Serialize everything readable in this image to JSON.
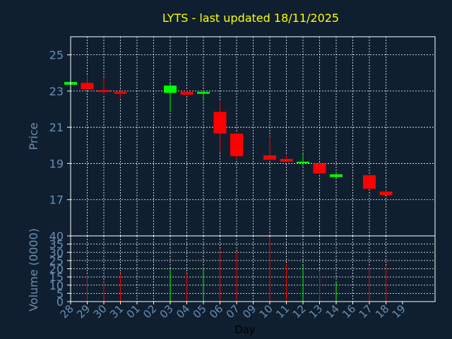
{
  "chart_data": [
    {
      "type": "candlestick",
      "title": "LYTS - last updated 18/11/2025",
      "xlabel": "",
      "ylabel": "Price",
      "ylim": [
        15,
        26
      ],
      "yticks": [
        "17",
        "19",
        "21",
        "23",
        "25"
      ],
      "grid": true,
      "candles": [
        {
          "date": "28",
          "open": 23.35,
          "high": 23.5,
          "low": 23.35,
          "close": 23.5,
          "color": "up"
        },
        {
          "date": "29",
          "open": 23.45,
          "high": 23.8,
          "low": 23.1,
          "close": 23.1,
          "color": "down"
        },
        {
          "date": "30",
          "open": 23.05,
          "high": 23.75,
          "low": 22.8,
          "close": 22.95,
          "color": "down"
        },
        {
          "date": "31",
          "open": 22.95,
          "high": 23.0,
          "low": 22.6,
          "close": 22.85,
          "color": "down"
        },
        {
          "date": "03",
          "open": 22.9,
          "high": 23.45,
          "low": 21.9,
          "close": 23.3,
          "color": "up"
        },
        {
          "date": "04",
          "open": 22.95,
          "high": 23.05,
          "low": 22.75,
          "close": 22.8,
          "color": "down"
        },
        {
          "date": "05",
          "open": 22.85,
          "high": 23.05,
          "low": 22.45,
          "close": 22.95,
          "color": "up"
        },
        {
          "date": "06",
          "open": 21.85,
          "high": 22.4,
          "low": 19.6,
          "close": 20.65,
          "color": "down"
        },
        {
          "date": "07",
          "open": 20.65,
          "high": 20.7,
          "low": 19.2,
          "close": 19.4,
          "color": "down"
        },
        {
          "date": "10",
          "open": 19.45,
          "high": 20.5,
          "low": 19.2,
          "close": 19.2,
          "color": "down"
        },
        {
          "date": "11",
          "open": 19.25,
          "high": 19.45,
          "low": 19.05,
          "close": 19.1,
          "color": "down"
        },
        {
          "date": "12",
          "open": 19.05,
          "high": 19.55,
          "low": 18.85,
          "close": 19.1,
          "color": "up"
        },
        {
          "date": "13",
          "open": 19.0,
          "high": 19.05,
          "low": 18.45,
          "close": 18.45,
          "color": "down"
        },
        {
          "date": "14",
          "open": 18.25,
          "high": 18.45,
          "low": 18.2,
          "close": 18.4,
          "color": "up"
        },
        {
          "date": "17",
          "open": 18.35,
          "high": 18.35,
          "low": 17.6,
          "close": 17.6,
          "color": "down"
        },
        {
          "date": "18",
          "open": 17.45,
          "high": 17.55,
          "low": 17.25,
          "close": 17.25,
          "color": "down"
        }
      ]
    },
    {
      "type": "bar",
      "xlabel": "Day",
      "ylabel": "Volume (0000)",
      "ylim": [
        0,
        40
      ],
      "yticks": [
        "0",
        "5",
        "10",
        "15",
        "20",
        "25",
        "30",
        "35",
        "40"
      ],
      "grid": true,
      "categories": [
        "28",
        "29",
        "30",
        "31",
        "01",
        "02",
        "03",
        "04",
        "05",
        "06",
        "07",
        "09",
        "10",
        "11",
        "12",
        "13",
        "14",
        "16",
        "17",
        "18",
        "19"
      ],
      "bars": [
        {
          "date": "29",
          "value": 16,
          "color": "down"
        },
        {
          "date": "30",
          "value": 12,
          "color": "down"
        },
        {
          "date": "31",
          "value": 17,
          "color": "down"
        },
        {
          "date": "03",
          "value": 20,
          "color": "up"
        },
        {
          "date": "04",
          "value": 17,
          "color": "down"
        },
        {
          "date": "05",
          "value": 21,
          "color": "up"
        },
        {
          "date": "06",
          "value": 32,
          "color": "down"
        },
        {
          "date": "07",
          "value": 30,
          "color": "down"
        },
        {
          "date": "10",
          "value": 39,
          "color": "down"
        },
        {
          "date": "11",
          "value": 23,
          "color": "down"
        },
        {
          "date": "12",
          "value": 22,
          "color": "up"
        },
        {
          "date": "13",
          "value": 19,
          "color": "down"
        },
        {
          "date": "14",
          "value": 12,
          "color": "up"
        },
        {
          "date": "17",
          "value": 21,
          "color": "down"
        },
        {
          "date": "18",
          "value": 22,
          "color": "down"
        }
      ]
    }
  ],
  "colors": {
    "background": "#0f1f2f",
    "text": "#6a8fb3",
    "title": "#ffff00",
    "up": "#00ff00",
    "down": "#ff0000",
    "grid": "#ffffff",
    "axis": "#ffffff"
  }
}
